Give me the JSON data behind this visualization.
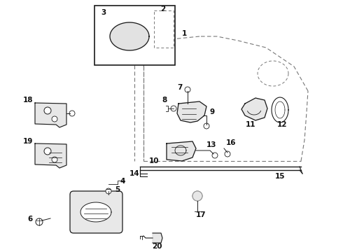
{
  "background_color": "#ffffff",
  "line_color": "#1a1a1a",
  "dashed_color": "#777777",
  "fig_width": 4.9,
  "fig_height": 3.6,
  "dpi": 100
}
